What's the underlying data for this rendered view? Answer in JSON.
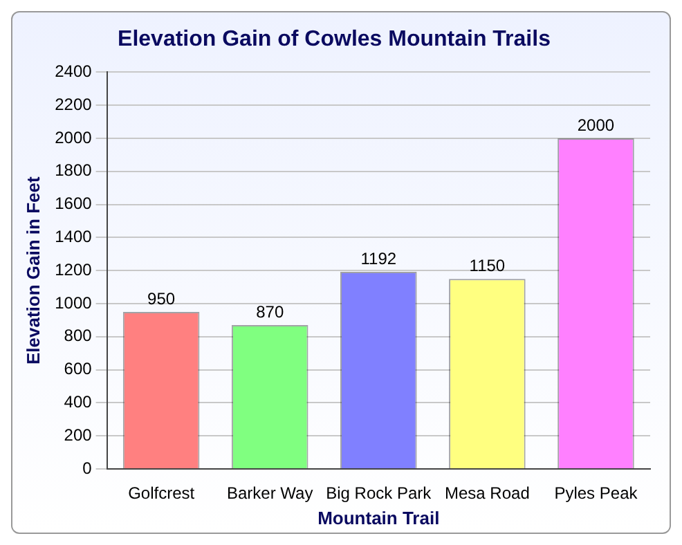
{
  "chart_data": {
    "type": "bar",
    "title": "Elevation Gain of Cowles Mountain Trails",
    "xlabel": "Mountain Trail",
    "ylabel": "Elevation Gain in Feet",
    "categories": [
      "Golfcrest",
      "Barker Way",
      "Big Rock Park",
      "Mesa Road",
      "Pyles Peak"
    ],
    "values": [
      950,
      870,
      1192,
      1150,
      2000
    ],
    "colors": [
      "#ff8080",
      "#80ff80",
      "#8080ff",
      "#ffff80",
      "#ff80ff"
    ],
    "ylim": [
      0,
      2400
    ],
    "yticks": [
      0,
      200,
      400,
      600,
      800,
      1000,
      1200,
      1400,
      1600,
      1800,
      2000,
      2200,
      2400
    ],
    "grid": "y",
    "data_labels": true
  }
}
